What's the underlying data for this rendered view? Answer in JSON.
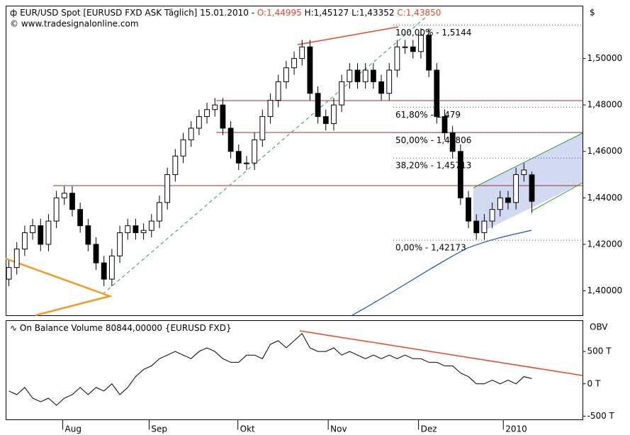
{
  "chart_data": [
    {
      "type": "candlestick",
      "title": "EUR/USD Spot [EURUSD FXD ASK Täglich] 15.01.2010 -",
      "ohlc_labels": [
        "O:1,44995",
        "H:1,45127",
        "L:1,43352",
        "C:1,43850"
      ],
      "source": "© www.tradesignalonline.com",
      "y_axis_label": "$",
      "up_color": "#ffffff",
      "down_color": "#000000",
      "xlim": [
        -0.36,
        72.44
      ],
      "ylim": [
        1.3893,
        1.5226
      ],
      "yticks": [
        {
          "value": 1.4,
          "label": "1,40000"
        },
        {
          "value": 1.42,
          "label": "1,42000"
        },
        {
          "value": 1.44,
          "label": "1,44000"
        },
        {
          "value": 1.46,
          "label": "1,46000"
        },
        {
          "value": 1.48,
          "label": "1,48000"
        },
        {
          "value": 1.5,
          "label": "1,50000"
        }
      ],
      "open": [
        1.405,
        1.41,
        1.418,
        1.425,
        1.428,
        1.42,
        1.43,
        1.44,
        1.442,
        1.435,
        1.428,
        1.42,
        1.412,
        1.405,
        1.415,
        1.425,
        1.428,
        1.425,
        1.426,
        1.43,
        1.438,
        1.45,
        1.458,
        1.465,
        1.47,
        1.475,
        1.478,
        1.48,
        1.47,
        1.46,
        1.455,
        1.455,
        1.465,
        1.475,
        1.482,
        1.49,
        1.496,
        1.5,
        1.505,
        1.485,
        1.475,
        1.472,
        1.48,
        1.49,
        1.495,
        1.49,
        1.495,
        1.49,
        1.485,
        1.495,
        1.505,
        1.505,
        1.503,
        1.51,
        1.495,
        1.475,
        1.468,
        1.46,
        1.44,
        1.43,
        1.425,
        1.43,
        1.435,
        1.44,
        1.438,
        1.45,
        1.44995
      ],
      "high": [
        1.413,
        1.421,
        1.428,
        1.431,
        1.431,
        1.433,
        1.443,
        1.445,
        1.445,
        1.438,
        1.431,
        1.423,
        1.415,
        1.418,
        1.428,
        1.431,
        1.431,
        1.429,
        1.433,
        1.441,
        1.453,
        1.461,
        1.468,
        1.473,
        1.478,
        1.481,
        1.483,
        1.483,
        1.473,
        1.463,
        1.458,
        1.468,
        1.478,
        1.485,
        1.493,
        1.499,
        1.503,
        1.508,
        1.508,
        1.488,
        1.478,
        1.483,
        1.493,
        1.498,
        1.498,
        1.498,
        1.498,
        1.493,
        1.498,
        1.508,
        1.508,
        1.508,
        1.513,
        1.513,
        1.498,
        1.478,
        1.471,
        1.463,
        1.443,
        1.433,
        1.433,
        1.438,
        1.443,
        1.443,
        1.453,
        1.455,
        1.45127
      ],
      "low": [
        1.402,
        1.407,
        1.415,
        1.422,
        1.417,
        1.417,
        1.427,
        1.437,
        1.432,
        1.425,
        1.417,
        1.409,
        1.402,
        1.402,
        1.412,
        1.422,
        1.422,
        1.422,
        1.423,
        1.427,
        1.435,
        1.447,
        1.455,
        1.462,
        1.467,
        1.472,
        1.475,
        1.467,
        1.457,
        1.452,
        1.452,
        1.452,
        1.462,
        1.472,
        1.479,
        1.487,
        1.493,
        1.497,
        1.482,
        1.472,
        1.469,
        1.469,
        1.477,
        1.487,
        1.487,
        1.487,
        1.487,
        1.482,
        1.482,
        1.492,
        1.502,
        1.5,
        1.5,
        1.492,
        1.472,
        1.465,
        1.457,
        1.437,
        1.427,
        1.422,
        1.422,
        1.427,
        1.432,
        1.435,
        1.435,
        1.447,
        1.43352
      ],
      "close": [
        1.41,
        1.418,
        1.425,
        1.428,
        1.42,
        1.43,
        1.44,
        1.442,
        1.435,
        1.428,
        1.42,
        1.412,
        1.405,
        1.415,
        1.425,
        1.428,
        1.425,
        1.426,
        1.43,
        1.438,
        1.45,
        1.458,
        1.465,
        1.47,
        1.475,
        1.478,
        1.48,
        1.47,
        1.46,
        1.455,
        1.455,
        1.465,
        1.475,
        1.482,
        1.49,
        1.496,
        1.5,
        1.505,
        1.485,
        1.475,
        1.472,
        1.48,
        1.49,
        1.495,
        1.49,
        1.495,
        1.49,
        1.485,
        1.495,
        1.505,
        1.505,
        1.503,
        1.51,
        1.495,
        1.475,
        1.468,
        1.46,
        1.44,
        1.43,
        1.425,
        1.43,
        1.435,
        1.44,
        1.438,
        1.45,
        1.452,
        1.4385
      ],
      "annotations": [
        {
          "label": "100,00% - 1,5144",
          "value": 1.5144
        },
        {
          "label": "61,80% - 1,479",
          "value": 1.479
        },
        {
          "label": "50,00% - 1,46806",
          "value": 1.46806
        },
        {
          "label": "38,20% - 1,45713",
          "value": 1.45713
        },
        {
          "label": "0,00% - 1,42173",
          "value": 1.42173
        }
      ],
      "annotation_color": "#1f5fa8"
    },
    {
      "type": "line",
      "title": "On Balance Volume 80844,00000 {EURUSD FXD}",
      "y_axis_label": "OBV",
      "color": "#000000",
      "xlim": [
        -0.36,
        72.44
      ],
      "ylim": [
        -556000,
        978000
      ],
      "yticks": [
        {
          "value": -500000,
          "label": "-500 T"
        },
        {
          "value": 0,
          "label": "0 T"
        },
        {
          "value": 500000,
          "label": "500 T"
        }
      ],
      "xticks": [
        {
          "value": 6.8,
          "label": "Aug"
        },
        {
          "value": 17.7,
          "label": "Sep"
        },
        {
          "value": 28.9,
          "label": "Okt"
        },
        {
          "value": 40.3,
          "label": "Nov"
        },
        {
          "value": 51.7,
          "label": "Dez"
        },
        {
          "value": 62.4,
          "label": "2010"
        }
      ],
      "values": [
        -111000,
        -167000,
        -56000,
        -222000,
        -278000,
        -222000,
        -333000,
        -222000,
        -167000,
        -56000,
        -167000,
        -56000,
        -111000,
        0,
        -167000,
        -56000,
        111000,
        222000,
        278000,
        389000,
        444000,
        500000,
        444000,
        389000,
        500000,
        556000,
        500000,
        389000,
        333000,
        333000,
        444000,
        444000,
        389000,
        611000,
        667000,
        556000,
        667000,
        778000,
        556000,
        500000,
        500000,
        556000,
        444000,
        500000,
        444000,
        389000,
        444000,
        389000,
        444000,
        389000,
        444000,
        389000,
        389000,
        333000,
        333000,
        278000,
        278000,
        167000,
        111000,
        0,
        0,
        56000,
        0,
        56000,
        0,
        111000,
        80844
      ]
    }
  ]
}
